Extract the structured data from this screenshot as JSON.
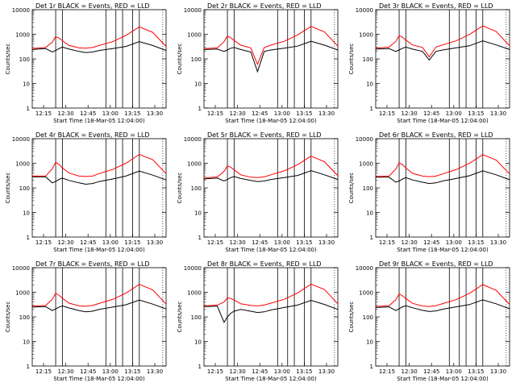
{
  "colors": {
    "events": "#000000",
    "lld": "#ff0000",
    "axes": "#000000"
  },
  "shared": {
    "title_suffix": "BLACK = Events, RED = LLD",
    "ylabel": "Counts/sec",
    "xlabel": "Start Time (18-Mar-05 12:04:00)",
    "x_ticks": [
      "12:15",
      "12:30",
      "12:45",
      "13:00",
      "13:15",
      "13:30"
    ],
    "y_ticks": [
      "1",
      "10",
      "100",
      "1000",
      "10000"
    ]
  },
  "chart_data": [
    {
      "type": "line",
      "title": "Det 1r",
      "xlabel": "Start Time (18-Mar-05 12:04:00)",
      "ylabel": "Counts/sec",
      "yscale": "log",
      "ylim": [
        1,
        10000
      ],
      "xlim_minutes_after_12:00": [
        4,
        44
      ],
      "series": [
        {
          "name": "Events",
          "x": [
            4,
            8,
            10,
            11,
            12,
            13,
            15,
            18,
            20,
            22,
            24,
            28,
            32,
            36,
            40,
            44
          ],
          "values": [
            240,
            260,
            190,
            220,
            260,
            300,
            250,
            200,
            180,
            190,
            220,
            260,
            320,
            500,
            350,
            220
          ]
        },
        {
          "name": "LLD",
          "x": [
            4,
            8,
            10,
            11,
            12,
            13,
            15,
            18,
            20,
            22,
            24,
            28,
            32,
            36,
            40,
            44
          ],
          "values": [
            260,
            290,
            480,
            800,
            700,
            550,
            350,
            280,
            270,
            290,
            350,
            500,
            900,
            2000,
            1200,
            320
          ]
        }
      ]
    },
    {
      "type": "line",
      "title": "Det 2r",
      "xlabel": "Start Time (18-Mar-05 12:04:00)",
      "ylabel": "Counts/sec",
      "yscale": "log",
      "ylim": [
        1,
        10000
      ],
      "xlim_minutes_after_12:00": [
        4,
        44
      ],
      "series": [
        {
          "name": "Events",
          "x": [
            4,
            8,
            10,
            11,
            12,
            13,
            15,
            18,
            20,
            22,
            24,
            28,
            32,
            36,
            40,
            44
          ],
          "values": [
            240,
            250,
            200,
            230,
            270,
            290,
            240,
            190,
            30,
            200,
            230,
            270,
            330,
            520,
            360,
            230
          ]
        },
        {
          "name": "LLD",
          "x": [
            4,
            8,
            10,
            11,
            12,
            13,
            15,
            18,
            20,
            22,
            24,
            28,
            32,
            36,
            40,
            44
          ],
          "values": [
            260,
            280,
            500,
            850,
            720,
            560,
            360,
            280,
            60,
            290,
            360,
            520,
            950,
            2100,
            1250,
            330
          ]
        }
      ]
    },
    {
      "type": "line",
      "title": "Det 3r",
      "xlabel": "Start Time (18-Mar-05 12:04:00)",
      "ylabel": "Counts/sec",
      "yscale": "log",
      "ylim": [
        1,
        10000
      ],
      "xlim_minutes_after_12:00": [
        4,
        44
      ],
      "series": [
        {
          "name": "Events",
          "x": [
            4,
            8,
            10,
            11,
            12,
            13,
            15,
            18,
            20,
            22,
            24,
            28,
            32,
            36,
            40,
            44
          ],
          "values": [
            250,
            260,
            200,
            230,
            270,
            300,
            250,
            200,
            90,
            200,
            230,
            280,
            340,
            540,
            370,
            240
          ]
        },
        {
          "name": "LLD",
          "x": [
            4,
            8,
            10,
            11,
            12,
            13,
            15,
            18,
            20,
            22,
            24,
            28,
            32,
            36,
            40,
            44
          ],
          "values": [
            270,
            300,
            520,
            880,
            760,
            580,
            370,
            290,
            120,
            300,
            370,
            540,
            980,
            2200,
            1300,
            340
          ]
        }
      ]
    },
    {
      "type": "line",
      "title": "Det 4r",
      "xlabel": "Start Time (18-Mar-05 12:04:00)",
      "ylabel": "Counts/sec",
      "yscale": "log",
      "ylim": [
        1,
        10000
      ],
      "xlim_minutes_after_12:00": [
        4,
        44
      ],
      "series": [
        {
          "name": "Events",
          "x": [
            4,
            8,
            10,
            11,
            12,
            13,
            15,
            18,
            20,
            22,
            24,
            28,
            32,
            36,
            40,
            44
          ],
          "values": [
            280,
            280,
            160,
            180,
            220,
            250,
            200,
            160,
            140,
            150,
            180,
            230,
            300,
            480,
            330,
            210
          ]
        },
        {
          "name": "LLD",
          "x": [
            4,
            8,
            10,
            11,
            12,
            13,
            15,
            18,
            20,
            22,
            24,
            28,
            32,
            36,
            40,
            44
          ],
          "values": [
            300,
            300,
            600,
            1100,
            900,
            650,
            400,
            300,
            290,
            300,
            380,
            560,
            1000,
            2300,
            1400,
            380
          ]
        }
      ]
    },
    {
      "type": "line",
      "title": "Det 5r",
      "xlabel": "Start Time (18-Mar-05 12:04:00)",
      "ylabel": "Counts/sec",
      "yscale": "log",
      "ylim": [
        1,
        10000
      ],
      "xlim_minutes_after_12:00": [
        4,
        44
      ],
      "series": [
        {
          "name": "Events",
          "x": [
            4,
            8,
            10,
            11,
            12,
            13,
            15,
            18,
            20,
            22,
            24,
            28,
            32,
            36,
            40,
            44
          ],
          "values": [
            230,
            250,
            190,
            220,
            260,
            290,
            240,
            200,
            180,
            190,
            220,
            260,
            320,
            500,
            340,
            220
          ]
        },
        {
          "name": "LLD",
          "x": [
            4,
            8,
            10,
            11,
            12,
            13,
            15,
            18,
            20,
            22,
            24,
            28,
            32,
            36,
            40,
            44
          ],
          "values": [
            250,
            280,
            470,
            790,
            690,
            540,
            340,
            270,
            260,
            280,
            340,
            490,
            880,
            1950,
            1150,
            310
          ]
        }
      ]
    },
    {
      "type": "line",
      "title": "Det 6r",
      "xlabel": "Start Time (18-Mar-05 12:04:00)",
      "ylabel": "Counts/sec",
      "yscale": "log",
      "ylim": [
        1,
        10000
      ],
      "xlim_minutes_after_12:00": [
        4,
        44
      ],
      "series": [
        {
          "name": "Events",
          "x": [
            4,
            8,
            10,
            11,
            12,
            13,
            15,
            18,
            20,
            22,
            24,
            28,
            32,
            36,
            40,
            44
          ],
          "values": [
            270,
            270,
            170,
            190,
            230,
            260,
            210,
            170,
            150,
            160,
            190,
            240,
            310,
            490,
            340,
            215
          ]
        },
        {
          "name": "LLD",
          "x": [
            4,
            8,
            10,
            11,
            12,
            13,
            15,
            18,
            20,
            22,
            24,
            28,
            32,
            36,
            40,
            44
          ],
          "values": [
            290,
            300,
            580,
            1050,
            880,
            640,
            390,
            300,
            285,
            300,
            370,
            550,
            990,
            2250,
            1350,
            370
          ]
        }
      ]
    },
    {
      "type": "line",
      "title": "Det 7r",
      "xlabel": "Start Time (18-Mar-05 12:04:00)",
      "ylabel": "Counts/sec",
      "yscale": "log",
      "ylim": [
        1,
        10000
      ],
      "xlim_minutes_after_12:00": [
        4,
        44
      ],
      "series": [
        {
          "name": "Events",
          "x": [
            4,
            8,
            10,
            11,
            12,
            13,
            15,
            18,
            20,
            22,
            24,
            28,
            32,
            36,
            40,
            44
          ],
          "values": [
            250,
            260,
            180,
            210,
            250,
            280,
            230,
            180,
            160,
            170,
            200,
            250,
            310,
            480,
            330,
            210
          ]
        },
        {
          "name": "LLD",
          "x": [
            4,
            8,
            10,
            11,
            12,
            13,
            15,
            18,
            20,
            22,
            24,
            28,
            32,
            36,
            40,
            44
          ],
          "values": [
            270,
            290,
            520,
            900,
            760,
            570,
            360,
            280,
            270,
            290,
            350,
            510,
            920,
            2100,
            1250,
            330
          ]
        }
      ]
    },
    {
      "type": "line",
      "title": "Det 8r",
      "xlabel": "Start Time (18-Mar-05 12:04:00)",
      "ylabel": "Counts/sec",
      "yscale": "log",
      "ylim": [
        1,
        10000
      ],
      "xlim_minutes_after_12:00": [
        4,
        44
      ],
      "series": [
        {
          "name": "Events",
          "x": [
            4,
            8,
            10,
            11,
            12,
            13,
            15,
            18,
            20,
            22,
            24,
            28,
            32,
            36,
            40,
            44
          ],
          "values": [
            260,
            270,
            60,
            100,
            140,
            170,
            200,
            170,
            150,
            160,
            190,
            240,
            300,
            470,
            320,
            200
          ]
        },
        {
          "name": "LLD",
          "x": [
            4,
            8,
            10,
            11,
            12,
            13,
            15,
            18,
            20,
            22,
            24,
            28,
            32,
            36,
            40,
            44
          ],
          "values": [
            280,
            300,
            400,
            600,
            560,
            480,
            340,
            290,
            280,
            300,
            360,
            520,
            940,
            2150,
            1300,
            340
          ]
        }
      ]
    },
    {
      "type": "line",
      "title": "Det 9r",
      "xlabel": "Start Time (18-Mar-05 12:04:00)",
      "ylabel": "Counts/sec",
      "yscale": "log",
      "ylim": [
        1,
        10000
      ],
      "xlim_minutes_after_12:00": [
        4,
        44
      ],
      "series": [
        {
          "name": "Events",
          "x": [
            4,
            8,
            10,
            11,
            12,
            13,
            15,
            18,
            20,
            22,
            24,
            28,
            32,
            36,
            40,
            44
          ],
          "values": [
            240,
            255,
            180,
            215,
            255,
            285,
            235,
            185,
            165,
            175,
            205,
            255,
            315,
            490,
            340,
            215
          ]
        },
        {
          "name": "LLD",
          "x": [
            4,
            8,
            10,
            11,
            12,
            13,
            15,
            18,
            20,
            22,
            24,
            28,
            32,
            36,
            40,
            44
          ],
          "values": [
            260,
            285,
            490,
            850,
            720,
            555,
            355,
            275,
            265,
            285,
            345,
            500,
            900,
            2050,
            1200,
            320
          ]
        }
      ]
    }
  ]
}
